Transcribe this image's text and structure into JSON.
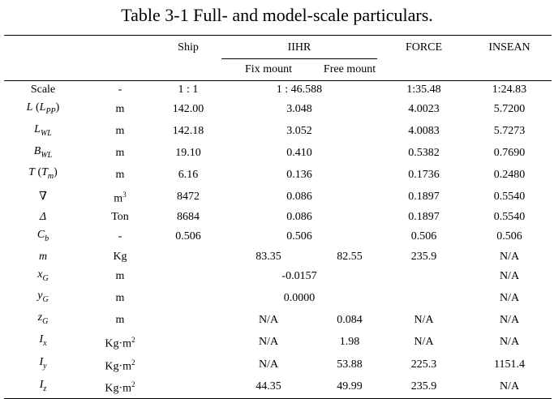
{
  "caption": "Table 3-1 Full- and model-scale particulars.",
  "headers": {
    "ship": "Ship",
    "iihr": "IIHR",
    "force": "FORCE",
    "insean": "INSEAN",
    "fix_mount": "Fix mount",
    "free_mount": "Free mount"
  },
  "rows": [
    {
      "sym": "Scale",
      "unit": "-",
      "ship": "1 : 1",
      "iihr": "1 : 46.588",
      "force": "1:35.48",
      "insean": "1:24.83"
    },
    {
      "sym": "L",
      "sym_open": " (",
      "sym_inner": "L",
      "sym_sub": "PP",
      "sym_close": ")",
      "unit": "m",
      "ship": "142.00",
      "iihr": "3.048",
      "force": "4.0023",
      "insean": "5.7200"
    },
    {
      "sym": "L",
      "sym_sub": "WL",
      "unit": "m",
      "ship": "142.18",
      "iihr": "3.052",
      "force": "4.0083",
      "insean": "5.7273"
    },
    {
      "sym": "B",
      "sym_sub": "WL",
      "unit": "m",
      "ship": "19.10",
      "iihr": "0.410",
      "force": "0.5382",
      "insean": "0.7690"
    },
    {
      "sym": "T",
      "sym_open": " (",
      "sym_inner": "T",
      "sym_sub": "m",
      "sym_close": ")",
      "unit": "m",
      "ship": "6.16",
      "iihr": "0.136",
      "force": "0.1736",
      "insean": "0.2480"
    },
    {
      "sym": "∇",
      "unit": "m",
      "unit_sup": "3",
      "ship": "8472",
      "iihr": "0.086",
      "force": "0.1897",
      "insean": "0.5540"
    },
    {
      "sym": "Δ",
      "unit": "Ton",
      "ship": "8684",
      "iihr": "0.086",
      "force": "0.1897",
      "insean": "0.5540"
    },
    {
      "sym": "C",
      "sym_sub": "b",
      "unit": "-",
      "ship": "0.506",
      "iihr": "0.506",
      "force": "0.506",
      "insean": "0.506"
    },
    {
      "sym": "m",
      "unit": "Kg",
      "ship": "",
      "fix": "83.35",
      "free": "82.55",
      "force": "235.9",
      "insean": "N/A"
    },
    {
      "sym": "x",
      "sym_sub": "G",
      "unit": "m",
      "ship": "",
      "iihr": "-0.0157",
      "force": "",
      "insean": "N/A"
    },
    {
      "sym": "y",
      "sym_sub": "G",
      "unit": "m",
      "ship": "",
      "iihr": "0.0000",
      "force": "",
      "insean": "N/A"
    },
    {
      "sym": "z",
      "sym_sub": "G",
      "unit": "m",
      "ship": "",
      "fix": "N/A",
      "free": "0.084",
      "force": "N/A",
      "insean": "N/A"
    },
    {
      "sym": "I",
      "sym_sub": "x",
      "unit": "Kg·m",
      "unit_sup": "2",
      "ship": "",
      "fix": "N/A",
      "free": "1.98",
      "force": "N/A",
      "insean": "N/A"
    },
    {
      "sym": "I",
      "sym_sub": "y",
      "unit": "Kg·m",
      "unit_sup": "2",
      "ship": "",
      "fix": "N/A",
      "free": "53.88",
      "force": "225.3",
      "insean": "1151.4"
    },
    {
      "sym": "I",
      "sym_sub": "z",
      "unit": "Kg·m",
      "unit_sup": "2",
      "ship": "",
      "fix": "44.35",
      "free": "49.99",
      "force": "235.9",
      "insean": "N/A"
    }
  ]
}
